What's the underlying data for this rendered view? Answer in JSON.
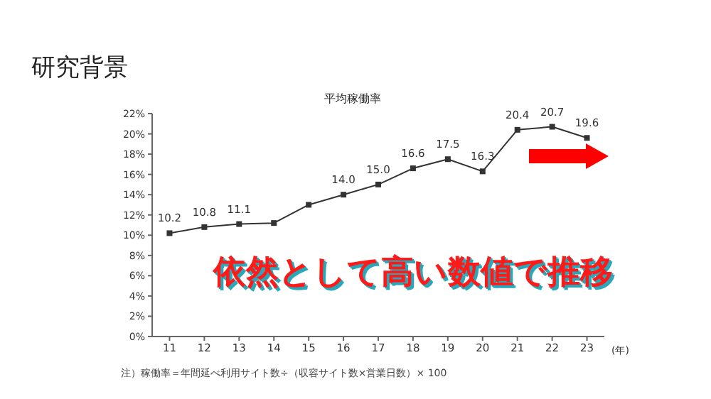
{
  "chart_data": {
    "type": "line",
    "title": "研究背景",
    "subtitle": "平均稼働率",
    "xlabel": "(年)",
    "categories": [
      "11",
      "12",
      "13",
      "14",
      "15",
      "16",
      "17",
      "18",
      "19",
      "20",
      "21",
      "22",
      "23"
    ],
    "series": [
      {
        "color": "#333333",
        "values": [
          10.2,
          10.8,
          11.1,
          11.2,
          13.0,
          14.0,
          15.0,
          16.6,
          17.5,
          16.3,
          20.4,
          20.7,
          19.6
        ],
        "value_labels": [
          "10.2",
          "10.8",
          "11.1",
          null,
          null,
          "14.0",
          "15.0",
          "16.6",
          "17.5",
          "16.3",
          "20.4",
          "20.7",
          "19.6"
        ]
      }
    ],
    "ylim": [
      0,
      22
    ],
    "yticks": [
      {
        "value": 0,
        "label": "0%"
      },
      {
        "value": 2,
        "label": "2%"
      },
      {
        "value": 4,
        "label": "4%"
      },
      {
        "value": 6,
        "label": "6%"
      },
      {
        "value": 8,
        "label": "8%"
      },
      {
        "value": 10,
        "label": "10%"
      },
      {
        "value": 12,
        "label": "12%"
      },
      {
        "value": 14,
        "label": "14%"
      },
      {
        "value": 16,
        "label": "16%"
      },
      {
        "value": 18,
        "label": "18%"
      },
      {
        "value": 20,
        "label": "20%"
      },
      {
        "value": 22,
        "label": "22%"
      }
    ],
    "marker": "square",
    "line_style": "solid",
    "grid": false,
    "legend": false,
    "annotations": [
      "依然として高い数値で推移",
      "注）稼働率＝年間延べ利用サイト数÷（収容サイト数×営業日数）× 100"
    ]
  }
}
